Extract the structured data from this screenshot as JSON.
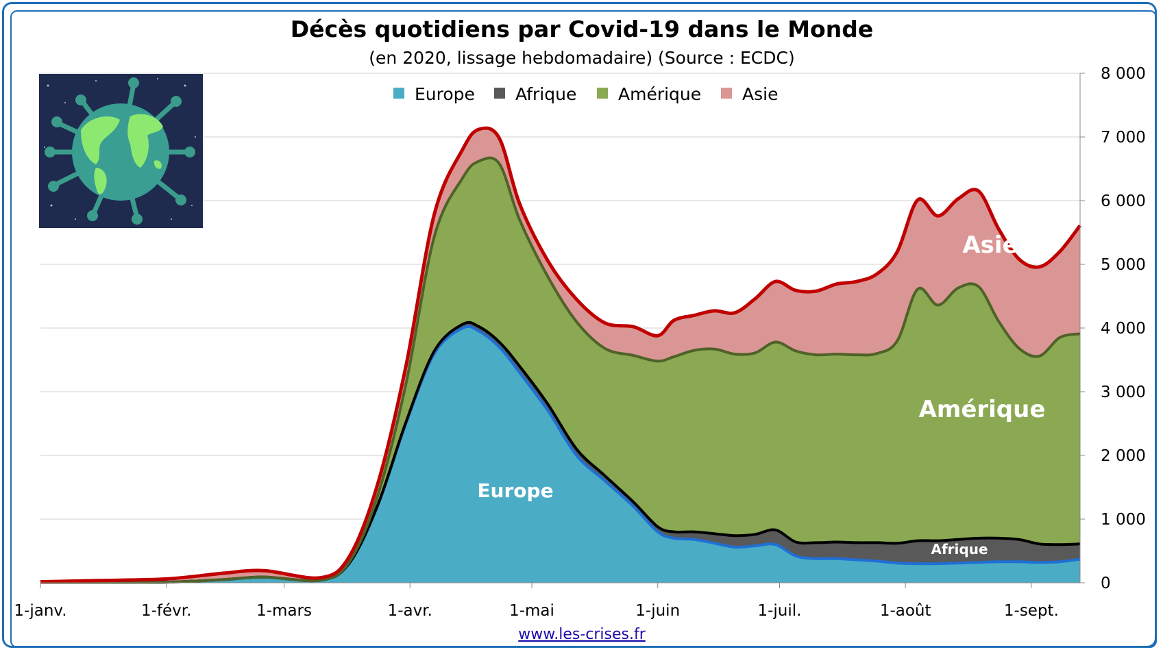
{
  "chart_data": {
    "type": "area",
    "stacked": true,
    "title": "Décès quotidiens par Covid-19 dans le Monde",
    "subtitle": "(en 2020, lissage hebdomadaire) (Source : ECDC)",
    "source": "www.les-crises.fr",
    "x_ticks": [
      "1-janv.",
      "1-févr.",
      "1-mars",
      "1-avr.",
      "1-mai",
      "1-juin",
      "1-juil.",
      "1-août",
      "1-sept."
    ],
    "y_ticks": [
      "0",
      "1 000",
      "2 000",
      "3 000",
      "4 000",
      "5 000",
      "6 000",
      "7 000",
      "8 000"
    ],
    "ylim": [
      0,
      8000
    ],
    "y_axis_side": "right",
    "grid": true,
    "legend_position": "top",
    "x": [
      "2020-01-01",
      "2020-01-15",
      "2020-02-01",
      "2020-02-15",
      "2020-02-25",
      "2020-03-10",
      "2020-03-17",
      "2020-03-24",
      "2020-03-31",
      "2020-04-07",
      "2020-04-14",
      "2020-04-18",
      "2020-04-23",
      "2020-04-28",
      "2020-05-05",
      "2020-05-12",
      "2020-05-19",
      "2020-05-26",
      "2020-06-01",
      "2020-06-05",
      "2020-06-10",
      "2020-06-15",
      "2020-06-20",
      "2020-06-25",
      "2020-06-30",
      "2020-07-05",
      "2020-07-10",
      "2020-07-15",
      "2020-07-20",
      "2020-07-25",
      "2020-07-30",
      "2020-08-04",
      "2020-08-09",
      "2020-08-14",
      "2020-08-19",
      "2020-08-24",
      "2020-08-29",
      "2020-09-03",
      "2020-09-08",
      "2020-09-13"
    ],
    "series": [
      {
        "name": "Europe",
        "color": "#4bacc6",
        "values": [
          5,
          5,
          10,
          50,
          90,
          40,
          300,
          1200,
          2500,
          3600,
          4000,
          3950,
          3700,
          3300,
          2700,
          2000,
          1600,
          1200,
          800,
          700,
          680,
          620,
          560,
          580,
          600,
          420,
          380,
          380,
          360,
          340,
          310,
          300,
          300,
          310,
          320,
          330,
          330,
          320,
          330,
          370
        ]
      },
      {
        "name": "Afrique",
        "color": "#595959",
        "values": [
          0,
          0,
          0,
          0,
          0,
          0,
          5,
          10,
          20,
          40,
          60,
          70,
          80,
          100,
          100,
          100,
          80,
          70,
          80,
          100,
          120,
          150,
          180,
          180,
          230,
          220,
          250,
          260,
          270,
          290,
          310,
          360,
          360,
          370,
          380,
          370,
          350,
          290,
          270,
          240
        ]
      },
      {
        "name": "Amérique",
        "color": "#8aa952",
        "values": [
          0,
          0,
          0,
          0,
          0,
          0,
          20,
          150,
          600,
          1800,
          2300,
          2600,
          2800,
          2300,
          2000,
          2000,
          2000,
          2300,
          2600,
          2750,
          2850,
          2900,
          2850,
          2850,
          2950,
          3000,
          2950,
          2950,
          2950,
          2970,
          3180,
          3950,
          3700,
          3950,
          3950,
          3400,
          3000,
          2950,
          3250,
          3300
        ]
      },
      {
        "name": "Asie",
        "color": "#da9694",
        "values": [
          10,
          30,
          50,
          100,
          100,
          40,
          80,
          180,
          280,
          350,
          450,
          500,
          400,
          250,
          250,
          350,
          400,
          450,
          400,
          570,
          550,
          600,
          650,
          850,
          950,
          950,
          1000,
          1100,
          1150,
          1250,
          1400,
          1400,
          1400,
          1400,
          1500,
          1450,
          1400,
          1400,
          1350,
          1700
        ]
      }
    ]
  },
  "legend": [
    {
      "label": "Europe",
      "color": "#4bacc6"
    },
    {
      "label": "Afrique",
      "color": "#595959"
    },
    {
      "label": "Amérique",
      "color": "#8aa952"
    },
    {
      "label": "Asie",
      "color": "#da9694"
    }
  ],
  "area_labels": {
    "europe": "Europe",
    "afrique": "Afrique",
    "amerique": "Amérique",
    "asie": "Asie"
  },
  "outline_colors": {
    "europe": "#1f6fd6",
    "afrique": "#000000",
    "amerique": "#4f6228",
    "asie": "#c00000"
  },
  "image_icon": "globe-virus-icon"
}
